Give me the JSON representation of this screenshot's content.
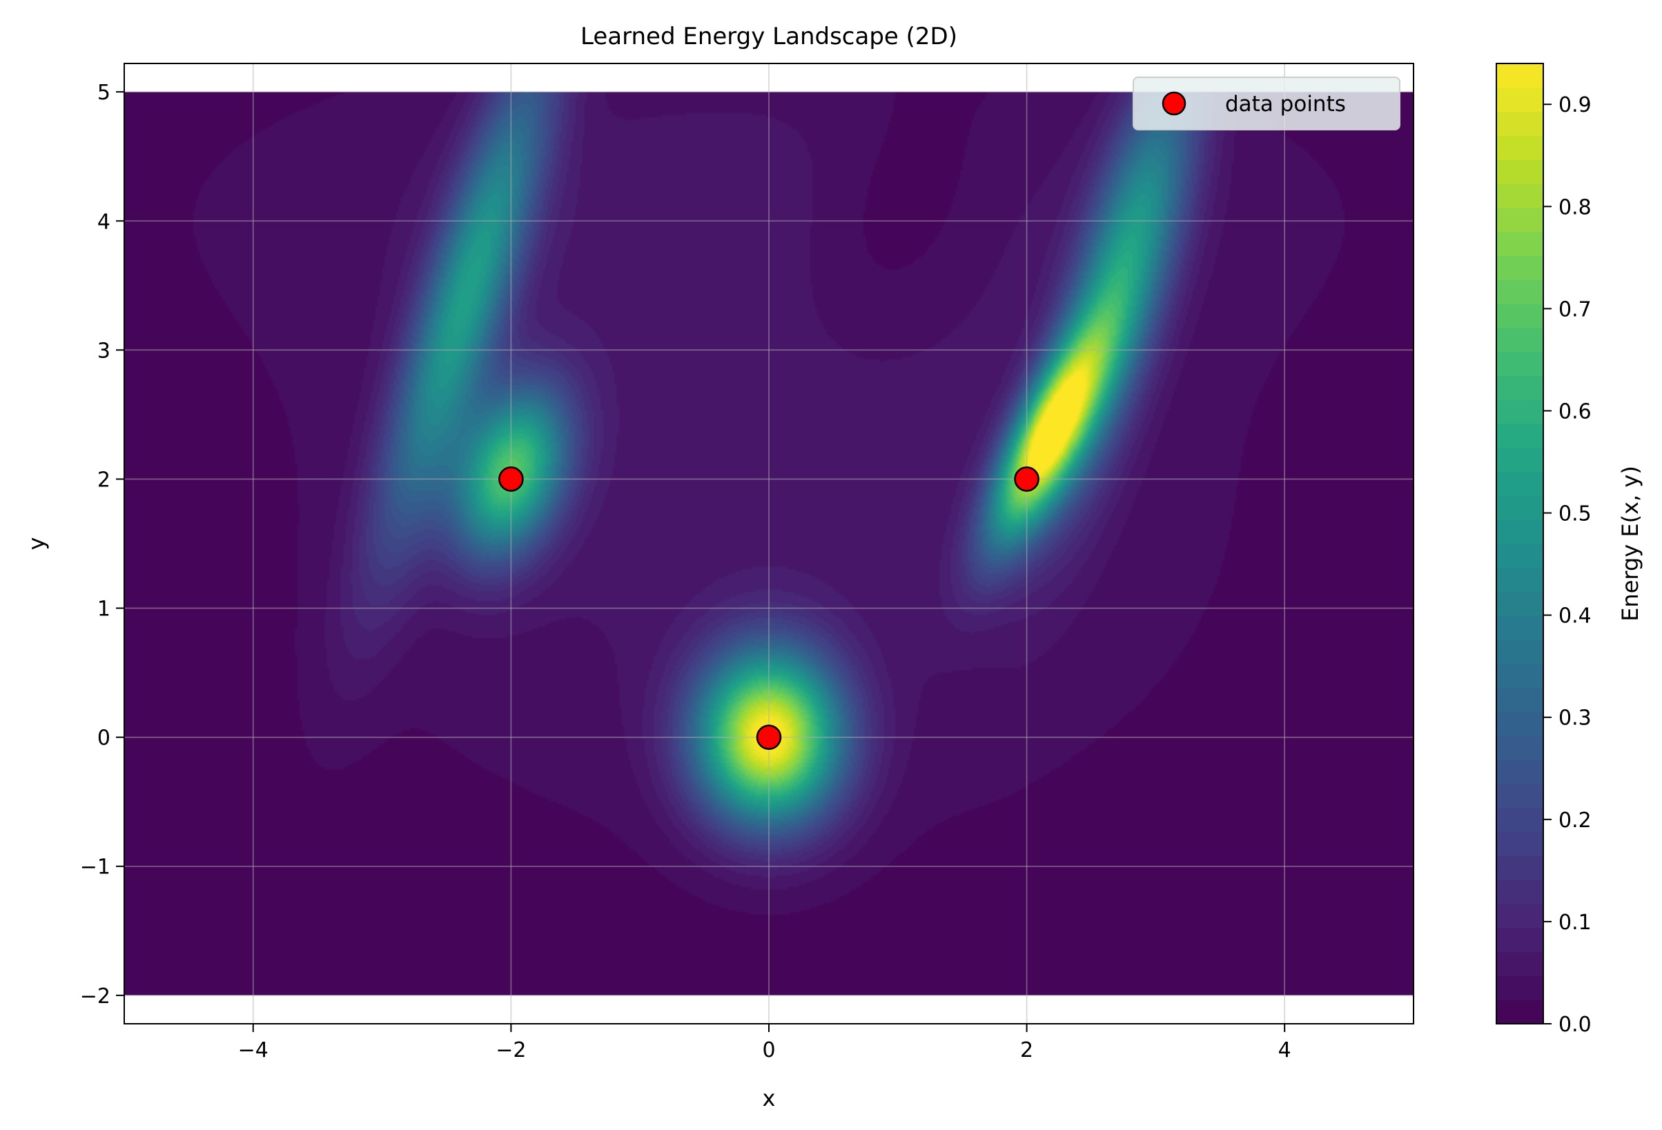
{
  "chart_data": {
    "type": "heatmap",
    "subtype": "filled-contour",
    "title": "Learned Energy Landscape (2D)",
    "xlabel": "x",
    "ylabel": "y",
    "xlim": [
      -5,
      5
    ],
    "ylim": [
      -2.22,
      5.22
    ],
    "data_extent": {
      "x": [
        -5,
        5
      ],
      "y": [
        -2,
        5
      ]
    },
    "xticks": [
      -4,
      -2,
      0,
      2,
      4
    ],
    "yticks": [
      -2,
      -1,
      0,
      1,
      2,
      3,
      4,
      5
    ],
    "xtick_labels": [
      "−4",
      "−2",
      "0",
      "2",
      "4"
    ],
    "ytick_labels": [
      "−2",
      "−1",
      "0",
      "1",
      "2",
      "3",
      "4",
      "5"
    ],
    "grid": true,
    "colormap": "viridis",
    "colorbar": {
      "label": "Energy E(x, y)",
      "range": [
        0.0,
        0.94
      ],
      "ticks": [
        0.0,
        0.1,
        0.2,
        0.3,
        0.4,
        0.5,
        0.6,
        0.7,
        0.8,
        0.9
      ],
      "tick_labels": [
        "0.0",
        "0.1",
        "0.2",
        "0.3",
        "0.4",
        "0.5",
        "0.6",
        "0.7",
        "0.8",
        "0.9"
      ]
    },
    "series": [
      {
        "name": "data points",
        "type": "scatter",
        "color": "#ff0000",
        "edgecolor": "#000000",
        "points": [
          {
            "x": -2,
            "y": 2
          },
          {
            "x": 0,
            "y": 0
          },
          {
            "x": 2,
            "y": 2
          }
        ]
      }
    ],
    "legend": {
      "position": "top-right",
      "entries": [
        "data points"
      ]
    }
  }
}
